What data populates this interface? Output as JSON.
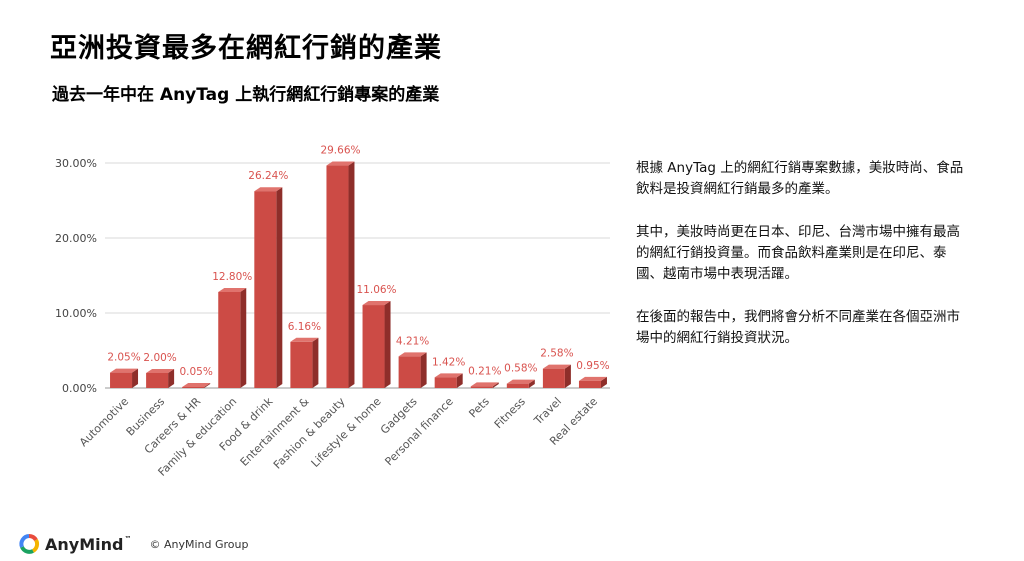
{
  "slide": {
    "title": "亞洲投資最多在網紅行銷的產業",
    "subtitle": "過去一年中在 AnyTag 上執行網紅行銷專案的產業"
  },
  "chart_data": {
    "type": "bar",
    "categories": [
      "Automotive",
      "Business",
      "Careers & HR",
      "Family & education",
      "Food & drink",
      "Entertainment &",
      "Fashion & beauty",
      "Lifestyle & home",
      "Gadgets",
      "Personal finance",
      "Pets",
      "Fitness",
      "Travel",
      "Real estate"
    ],
    "values": [
      2.05,
      2.0,
      0.05,
      12.8,
      26.24,
      6.16,
      29.66,
      11.06,
      4.21,
      1.42,
      0.21,
      0.58,
      2.58,
      0.95
    ],
    "data_labels": [
      "2.05%",
      "2.00%",
      "0.05%",
      "12.80%",
      "26.24%",
      "6.16%",
      "29.66%",
      "11.06%",
      "4.21%",
      "1.42%",
      "0.21%",
      "0.58%",
      "2.58%",
      "0.95%"
    ],
    "y_ticks": [
      0,
      10,
      20,
      30
    ],
    "y_tick_labels": [
      "0.00%",
      "10.00%",
      "20.00%",
      "30.00%"
    ],
    "ylim": [
      0,
      30
    ],
    "grid": true,
    "bar_color": "#cc4b45",
    "label_color": "#d9534f"
  },
  "commentary": {
    "paragraphs": [
      "根據 AnyTag 上的網紅行銷專案數據，美妝時尚、食品飲料是投資網紅行銷最多的產業。",
      "其中，美妝時尚更在日本、印尼、台灣市場中擁有最高的網紅行銷投資量。而食品飲料產業則是在印尼、泰國、越南市場中表現活躍。",
      "在後面的報告中，我們將會分析不同產業在各個亞洲市場中的網紅行銷投資狀況。"
    ]
  },
  "footer": {
    "brand": "AnyMind",
    "trademark": "™",
    "copyright": "© AnyMind Group",
    "logo_icon": "anymind-logo-icon"
  }
}
